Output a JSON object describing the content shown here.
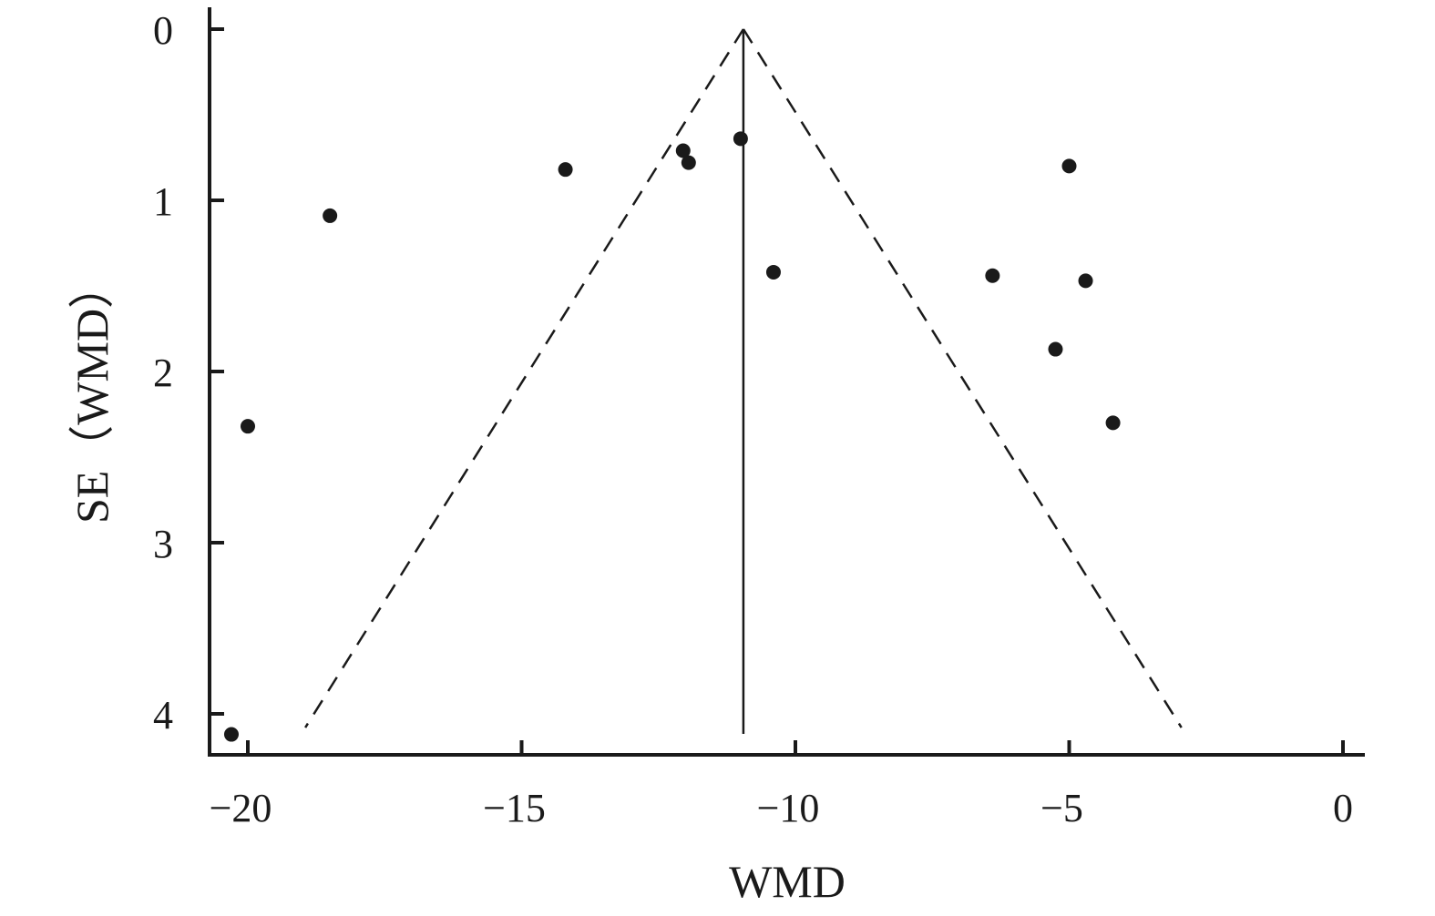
{
  "chart_data": {
    "type": "scatter",
    "subtype": "funnel-plot",
    "title": "",
    "xlabel": "WMD",
    "ylabel": "SE（WMD）",
    "xlim": [
      -20.7,
      0.4
    ],
    "ylim": [
      0,
      4.25
    ],
    "y_inverted": true,
    "x_ticks": [
      -20,
      -15,
      -10,
      -5,
      0
    ],
    "x_tick_labels": [
      "−20",
      "−15",
      "−10",
      "−5",
      "0"
    ],
    "y_ticks": [
      0,
      1,
      2,
      3,
      4
    ],
    "y_tick_labels": [
      "0",
      "1",
      "2",
      "3",
      "4"
    ],
    "pooled_estimate": -10.95,
    "funnel": {
      "apex": [
        -10.95,
        0
      ],
      "left_base": [
        -18.95,
        4.08
      ],
      "right_base": [
        -2.95,
        4.08
      ],
      "line_style": "dashed"
    },
    "points": [
      {
        "x": -11.0,
        "y": 0.64
      },
      {
        "x": -12.05,
        "y": 0.71
      },
      {
        "x": -11.95,
        "y": 0.78
      },
      {
        "x": -14.2,
        "y": 0.82
      },
      {
        "x": -18.5,
        "y": 1.09
      },
      {
        "x": -5.0,
        "y": 0.8
      },
      {
        "x": -10.4,
        "y": 1.42
      },
      {
        "x": -6.4,
        "y": 1.44
      },
      {
        "x": -4.7,
        "y": 1.47
      },
      {
        "x": -5.25,
        "y": 1.87
      },
      {
        "x": -4.2,
        "y": 2.3
      },
      {
        "x": -20.0,
        "y": 2.32
      },
      {
        "x": -20.3,
        "y": 4.12
      }
    ],
    "grid": false,
    "legend": "none"
  }
}
